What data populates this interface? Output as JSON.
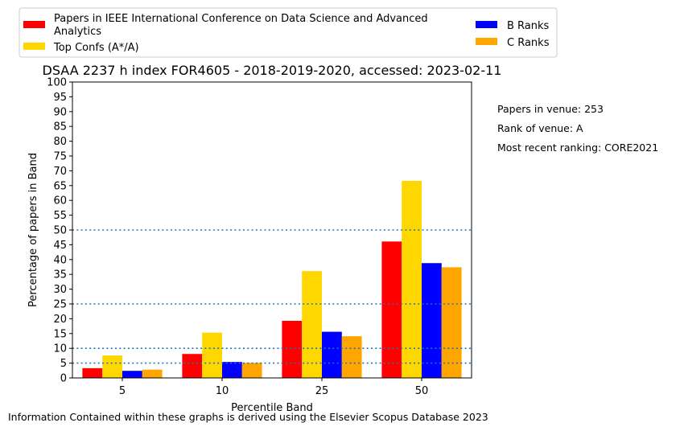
{
  "chart_data": {
    "type": "bar",
    "title": "DSAA 2237 h index FOR4605 - 2018-2019-2020, accessed: 2023-02-11",
    "xlabel": "Percentile Band",
    "ylabel": "Percentage of papers in Band",
    "categories": [
      "5",
      "10",
      "25",
      "50"
    ],
    "ylim": [
      0,
      100
    ],
    "yticks": [
      "0",
      "5",
      "10",
      "15",
      "20",
      "25",
      "30",
      "35",
      "40",
      "45",
      "50",
      "55",
      "60",
      "65",
      "70",
      "75",
      "80",
      "85",
      "90",
      "95",
      "100"
    ],
    "reference_lines": [
      5,
      10,
      25,
      50
    ],
    "reference_line_color": "#1f77b4",
    "legend_placement": "top, above plot",
    "series": [
      {
        "name": "Papers in IEEE International Conference on Data Science and Advanced Analytics",
        "color": "#ff0000",
        "values": [
          3.3,
          8.1,
          19.3,
          46.1
        ]
      },
      {
        "name": "Top Confs (A*/A)",
        "color": "#ffd700",
        "values": [
          7.6,
          15.3,
          36.1,
          66.6
        ]
      },
      {
        "name": "B Ranks",
        "color": "#0000ff",
        "values": [
          2.4,
          5.4,
          15.6,
          38.8
        ]
      },
      {
        "name": "C Ranks",
        "color": "#ffa500",
        "values": [
          2.8,
          5.1,
          14.1,
          37.4
        ]
      }
    ]
  },
  "legend": {
    "series_0_line1": "Papers in IEEE International Conference on Data Science and Advanced",
    "series_0_line2": "Analytics",
    "series_1": "Top Confs (A*/A)",
    "series_2": "B Ranks",
    "series_3": "C Ranks"
  },
  "side_notes": {
    "papers_in_venue": "Papers in venue: 253",
    "rank_of_venue": "Rank of venue: A",
    "most_recent_ranking": "Most recent ranking: CORE2021"
  },
  "footer": "Information Contained within these graphs is derived using the Elsevier Scopus Database 2023"
}
